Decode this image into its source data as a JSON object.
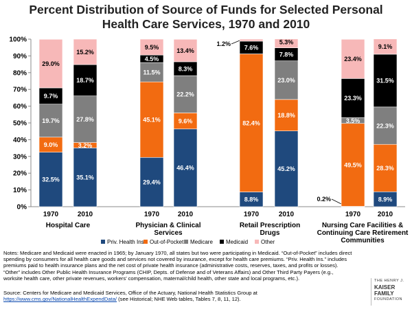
{
  "title_lines": [
    "Percent Distribution of Source of Funds for Selected Personal",
    "Health Care Services, 1970 and 2010"
  ],
  "colors": {
    "priv": "#1f497d",
    "oop": "#f26b11",
    "medicare": "#7f7f7f",
    "medicaid": "#000000",
    "other": "#f7b8b8"
  },
  "chart_data": {
    "type": "bar",
    "stacked": true,
    "title": "Percent Distribution of Source of Funds for Selected Personal Health Care Services, 1970 and 2010",
    "ylim": [
      0,
      100
    ],
    "yticks": [
      "0%",
      "10%",
      "20%",
      "30%",
      "40%",
      "50%",
      "60%",
      "70%",
      "80%",
      "90%",
      "100%"
    ],
    "series_names": [
      "Priv. Health Ins.",
      "Out-of-Pocket",
      "Medicare",
      "Medicaid",
      "Other"
    ],
    "groups": [
      {
        "label_lines": [
          "Hospital Care"
        ],
        "bars": [
          {
            "year": "1970",
            "values": [
              32.5,
              9.0,
              19.7,
              9.7,
              29.0
            ],
            "labels": [
              "32.5%",
              "9.0%",
              "19.7%",
              "9.7%",
              "29.0%"
            ]
          },
          {
            "year": "2010",
            "values": [
              35.1,
              3.2,
              27.8,
              18.7,
              15.2
            ],
            "labels": [
              "35.1%",
              "3.2%",
              "27.8%",
              "18.7%",
              "15.2%"
            ]
          }
        ]
      },
      {
        "label_lines": [
          "Physician & Clinical",
          "Services"
        ],
        "bars": [
          {
            "year": "1970",
            "values": [
              29.4,
              45.1,
              11.5,
              4.5,
              9.5
            ],
            "labels": [
              "29.4%",
              "45.1%",
              "11.5%",
              "4.5%",
              "9.5%"
            ]
          },
          {
            "year": "2010",
            "values": [
              46.4,
              9.6,
              22.2,
              8.3,
              13.4
            ],
            "labels": [
              "46.4%",
              "9.6%",
              "22.2%",
              "8.3%",
              "13.4%"
            ]
          }
        ]
      },
      {
        "label_lines": [
          "Retail Prescription",
          "Drugs"
        ],
        "bars": [
          {
            "year": "1970",
            "values": [
              8.8,
              82.4,
              0,
              7.6,
              1.2
            ],
            "labels": [
              "8.8%",
              "82.4%",
              "",
              "7.6%",
              "1.2%"
            ]
          },
          {
            "year": "2010",
            "values": [
              45.2,
              18.8,
              23.0,
              7.8,
              5.3
            ],
            "labels": [
              "45.2%",
              "18.8%",
              "23.0%",
              "7.8%",
              "5.3%"
            ]
          }
        ]
      },
      {
        "label_lines": [
          "Nursing Care Facilities &",
          "Continuing Care Retirement",
          "Communities"
        ],
        "bars": [
          {
            "year": "1970",
            "values": [
              0.2,
              49.5,
              3.5,
              23.3,
              23.4
            ],
            "labels": [
              "0.2%",
              "49.5%",
              "3.5%",
              "23.3%",
              "23.4%"
            ]
          },
          {
            "year": "2010",
            "values": [
              8.9,
              28.3,
              22.3,
              31.5,
              9.1
            ],
            "labels": [
              "8.9%",
              "28.3%",
              "22.3%",
              "31.5%",
              "9.1%"
            ]
          }
        ]
      }
    ]
  },
  "notes": "Notes: Medicare and Medicaid were enacted in 1965; by January 1970, all states but two were participating in Medicaid. “Out-of-Pocket” includes direct spending by consumers for all health care goods and services not covered by insurance, except for health care premiums. “Priv. Health Ins.” includes premiums paid to health insurance plans and the net cost of private health insurance (administrative costs, reserves, taxes, and profits or losses). “Other” includes Other Public Health Insurance Programs (CHIP, Depts. of Defense and of Veterans Affairs) and Other Third Party Payers (e.g., worksite health care, other private revenues, workers’ compensation, maternal/child health, other state and local programs, etc.).",
  "source": {
    "prefix": "Source: Centers for Medicare and Medicaid Services, Office of the Actuary, National Health Statistics Group at",
    "link": "https://www.cms.gov/NationalHealthExpendData/",
    "suffix": " (see Historical; NHE Web tables, Tables 7, 8, 11, 12)."
  },
  "logo": {
    "line1": "THE HENRY J.",
    "line2": "KAISER",
    "line3": "FAMILY",
    "line4": "FOUNDATION"
  }
}
